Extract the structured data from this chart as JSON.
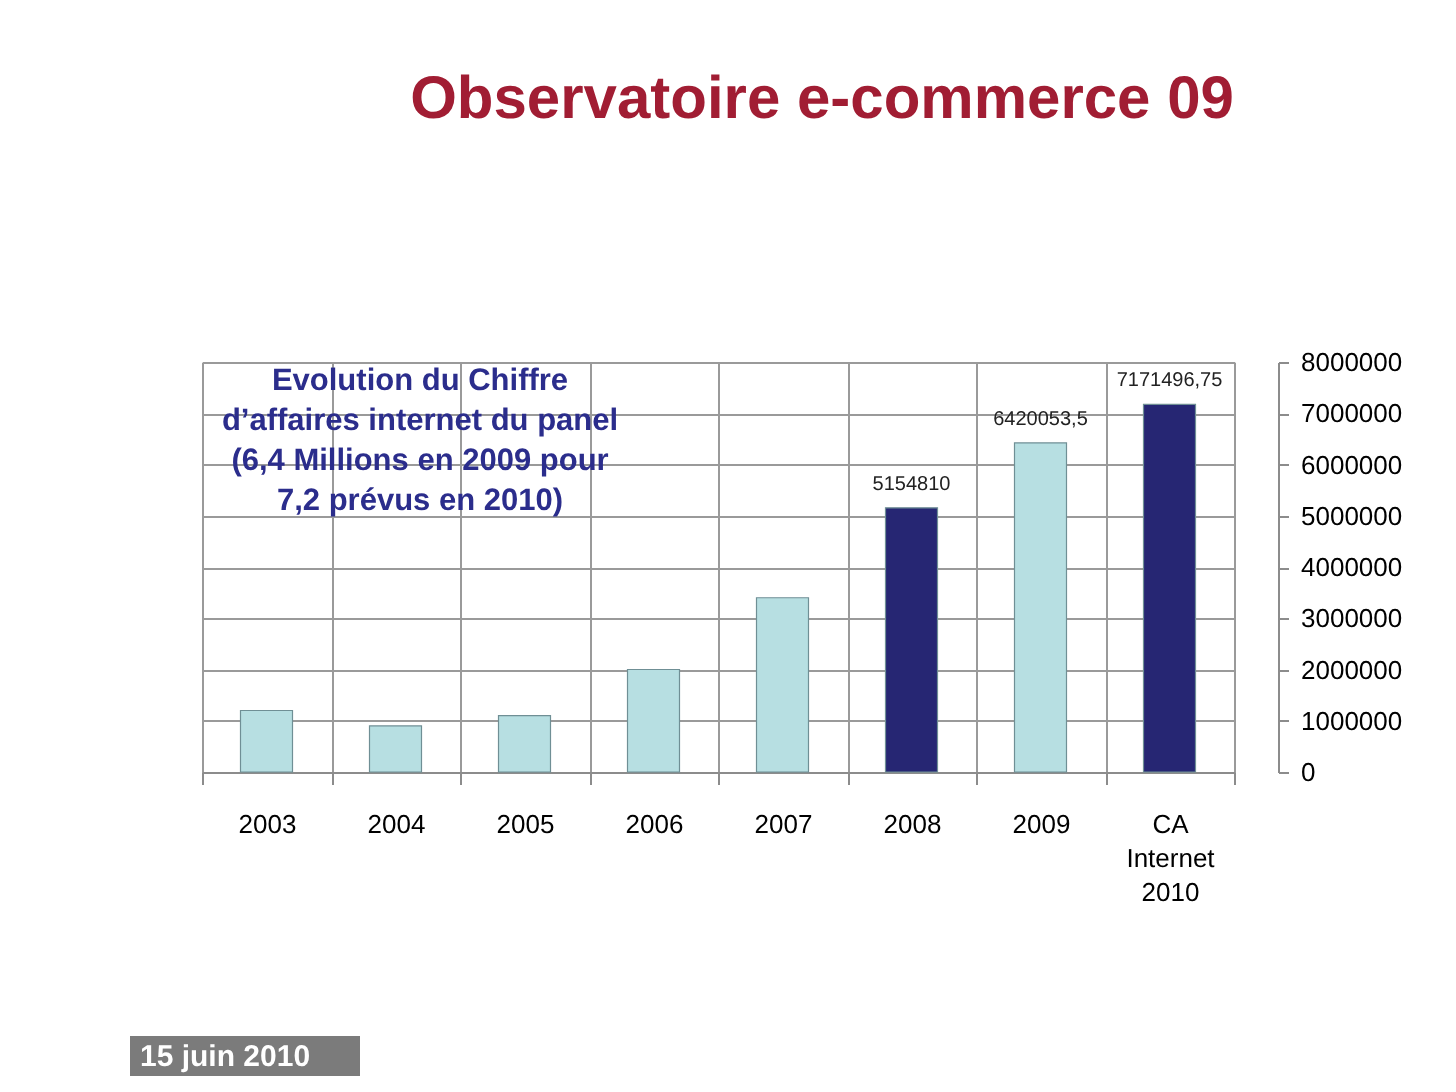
{
  "chart_data": {
    "type": "bar",
    "title": "Observatoire e-commerce 09",
    "categories": [
      "2003",
      "2004",
      "2005",
      "2006",
      "2007",
      "2008",
      "2009",
      "CA Internet 2010"
    ],
    "values": [
      1200000,
      900000,
      1100000,
      2000000,
      3400000,
      5154810,
      6420053.5,
      7171496.75
    ],
    "colors": [
      "#b7dfe2",
      "#b7dfe2",
      "#b7dfe2",
      "#b7dfe2",
      "#b7dfe2",
      "#262673",
      "#b7dfe2",
      "#262673"
    ],
    "value_labels": [
      null,
      null,
      null,
      null,
      null,
      "5154810",
      "6420053,5",
      "7171496,75"
    ],
    "ylim": [
      0,
      8000000
    ],
    "yticks": [
      0,
      1000000,
      2000000,
      3000000,
      4000000,
      5000000,
      6000000,
      7000000,
      8000000
    ],
    "grid": true,
    "annotations": [
      "Evolution du Chiffre d’affaires internet du panel (6,4 Millions en 2009 pour 7,2 prévus en 2010)",
      "15 juin 2010"
    ]
  }
}
